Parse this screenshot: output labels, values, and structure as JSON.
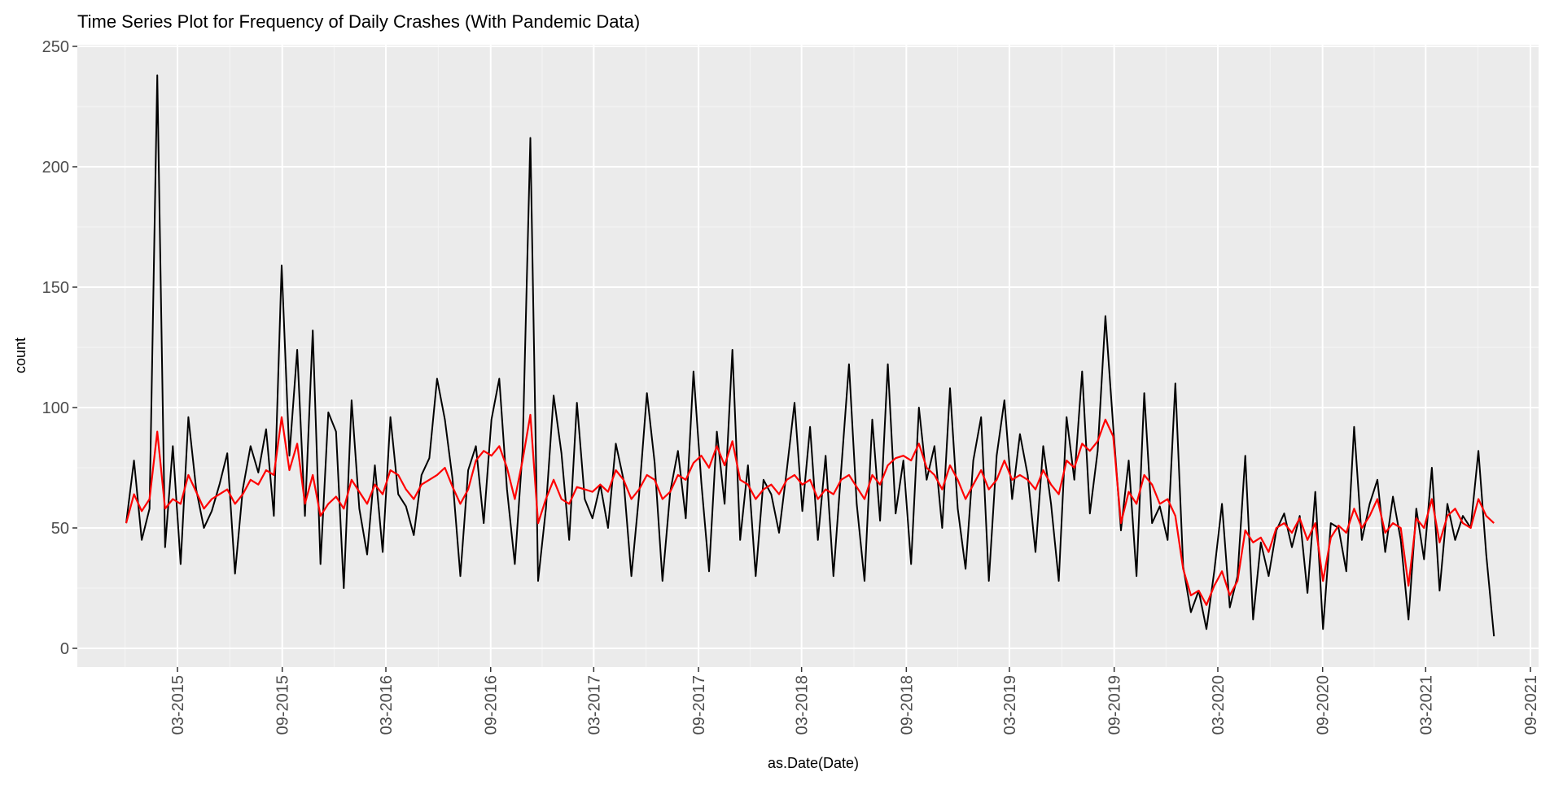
{
  "chart_data": {
    "type": "line",
    "title": "Time Series Plot for Frequency of Daily Crashes (With Pandemic Data)",
    "xlabel": "as.Date(Date)",
    "ylabel": "count",
    "ylim": [
      0,
      250
    ],
    "yticks": [
      0,
      50,
      100,
      150,
      200,
      250
    ],
    "xlim": [
      "2014-09-01",
      "2021-09-01"
    ],
    "x_date_format": "MM-YYYY",
    "xticks": [
      "03-2015",
      "09-2015",
      "03-2016",
      "09-2016",
      "03-2017",
      "09-2017",
      "03-2018",
      "09-2018",
      "03-2019",
      "09-2019",
      "03-2020",
      "09-2020",
      "03-2021",
      "09-2021"
    ],
    "grid": true,
    "background": "#EBEBEB",
    "series": [
      {
        "style": "daily",
        "color": "#000000",
        "x_start": "2014-12-01",
        "x_end": "2021-06-29",
        "x_step": "21 days",
        "y": [
          52,
          78,
          45,
          58,
          238,
          42,
          84,
          35,
          96,
          66,
          50,
          57,
          68,
          81,
          31,
          66,
          84,
          73,
          91,
          55,
          159,
          80,
          124,
          55,
          132,
          35,
          98,
          90,
          25,
          103,
          58,
          39,
          76,
          40,
          96,
          64,
          59,
          47,
          72,
          79,
          112,
          95,
          70,
          30,
          74,
          84,
          52,
          95,
          112,
          66,
          35,
          82,
          212,
          28,
          58,
          105,
          81,
          45,
          102,
          62,
          54,
          68,
          50,
          85,
          70,
          30,
          64,
          106,
          77,
          28,
          65,
          82,
          54,
          115,
          69,
          32,
          90,
          60,
          124,
          45,
          76,
          30,
          70,
          64,
          48,
          74,
          102,
          57,
          92,
          45,
          80,
          30,
          74,
          118,
          60,
          28,
          95,
          53,
          118,
          56,
          78,
          35,
          100,
          70,
          84,
          50,
          108,
          58,
          33,
          78,
          96,
          28,
          80,
          103,
          62,
          89,
          72,
          40,
          84,
          60,
          28,
          96,
          70,
          115,
          56,
          82,
          138,
          92,
          49,
          78,
          30,
          106,
          52,
          59,
          45,
          110,
          34,
          15,
          24,
          8,
          32,
          60,
          17,
          30,
          80,
          12,
          44,
          30,
          49,
          56,
          42,
          55,
          23,
          65,
          8,
          52,
          50,
          32,
          92,
          45,
          60,
          70,
          40,
          63,
          45,
          12,
          58,
          37,
          75,
          24,
          60,
          45,
          55,
          50,
          82,
          39,
          5
        ]
      },
      {
        "style": "smoothed",
        "color": "#FF0000",
        "x_start": "2014-12-01",
        "x_end": "2021-06-29",
        "x_step": "21 days",
        "y": [
          52,
          64,
          57,
          62,
          90,
          58,
          62,
          60,
          72,
          65,
          58,
          62,
          64,
          66,
          60,
          64,
          70,
          68,
          74,
          72,
          96,
          74,
          85,
          60,
          72,
          55,
          60,
          63,
          58,
          70,
          65,
          60,
          68,
          64,
          74,
          72,
          66,
          62,
          68,
          70,
          72,
          75,
          67,
          60,
          66,
          78,
          82,
          80,
          84,
          75,
          62,
          78,
          97,
          52,
          62,
          70,
          62,
          60,
          67,
          66,
          65,
          68,
          65,
          74,
          70,
          62,
          66,
          72,
          70,
          62,
          65,
          72,
          70,
          77,
          80,
          75,
          84,
          76,
          86,
          70,
          68,
          62,
          66,
          68,
          64,
          70,
          72,
          68,
          70,
          62,
          66,
          64,
          70,
          72,
          67,
          62,
          72,
          68,
          76,
          79,
          80,
          78,
          85,
          75,
          72,
          66,
          76,
          70,
          62,
          68,
          74,
          66,
          70,
          78,
          70,
          72,
          70,
          66,
          74,
          68,
          64,
          78,
          75,
          85,
          82,
          86,
          95,
          88,
          52,
          65,
          60,
          72,
          68,
          60,
          62,
          55,
          33,
          22,
          24,
          18,
          26,
          32,
          22,
          28,
          49,
          44,
          46,
          40,
          50,
          52,
          48,
          54,
          45,
          52,
          28,
          46,
          51,
          48,
          58,
          50,
          55,
          62,
          48,
          52,
          50,
          26,
          54,
          50,
          62,
          44,
          55,
          58,
          52,
          50,
          62,
          55,
          52
        ]
      }
    ]
  }
}
